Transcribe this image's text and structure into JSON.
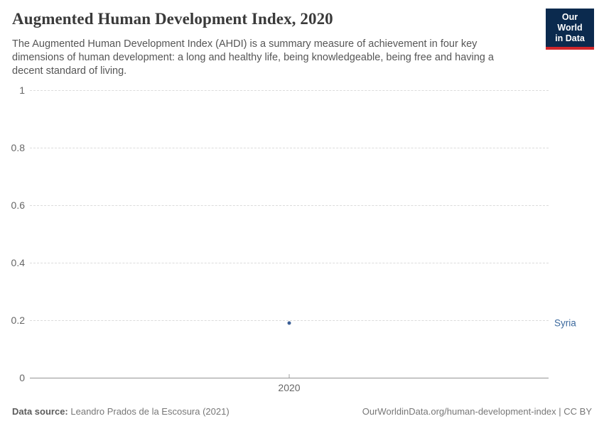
{
  "header": {
    "title": "Augmented Human Development Index, 2020",
    "subtitle": "The Augmented Human Development Index (AHDI) is a summary measure of achievement in four key dimensions of human development: a long and healthy life, being knowledgeable, being free and having a decent standard of living.",
    "logo": {
      "line1": "Our World",
      "line2": "in Data",
      "bg_color": "#0b2a4e",
      "accent_color": "#d1262b"
    }
  },
  "chart_data": {
    "type": "scatter",
    "x": [
      2020
    ],
    "series": [
      {
        "name": "Syria",
        "values": [
          0.19
        ],
        "color": "#3b5f96",
        "label_color": "#3d6a9e"
      }
    ],
    "title": "Augmented Human Development Index, 2020",
    "xlabel": "",
    "ylabel": "",
    "ylim": [
      0,
      1
    ],
    "yticks": [
      0,
      0.2,
      0.4,
      0.6,
      0.8,
      1
    ],
    "xticks": [
      2020
    ],
    "grid": "horizontal-dashed",
    "legend_position": "entity label right of plot"
  },
  "footer": {
    "datasource_label": "Data source:",
    "datasource_value": "Leandro Prados de la Escosura (2021)",
    "attribution": "OurWorldinData.org/human-development-index | CC BY"
  }
}
